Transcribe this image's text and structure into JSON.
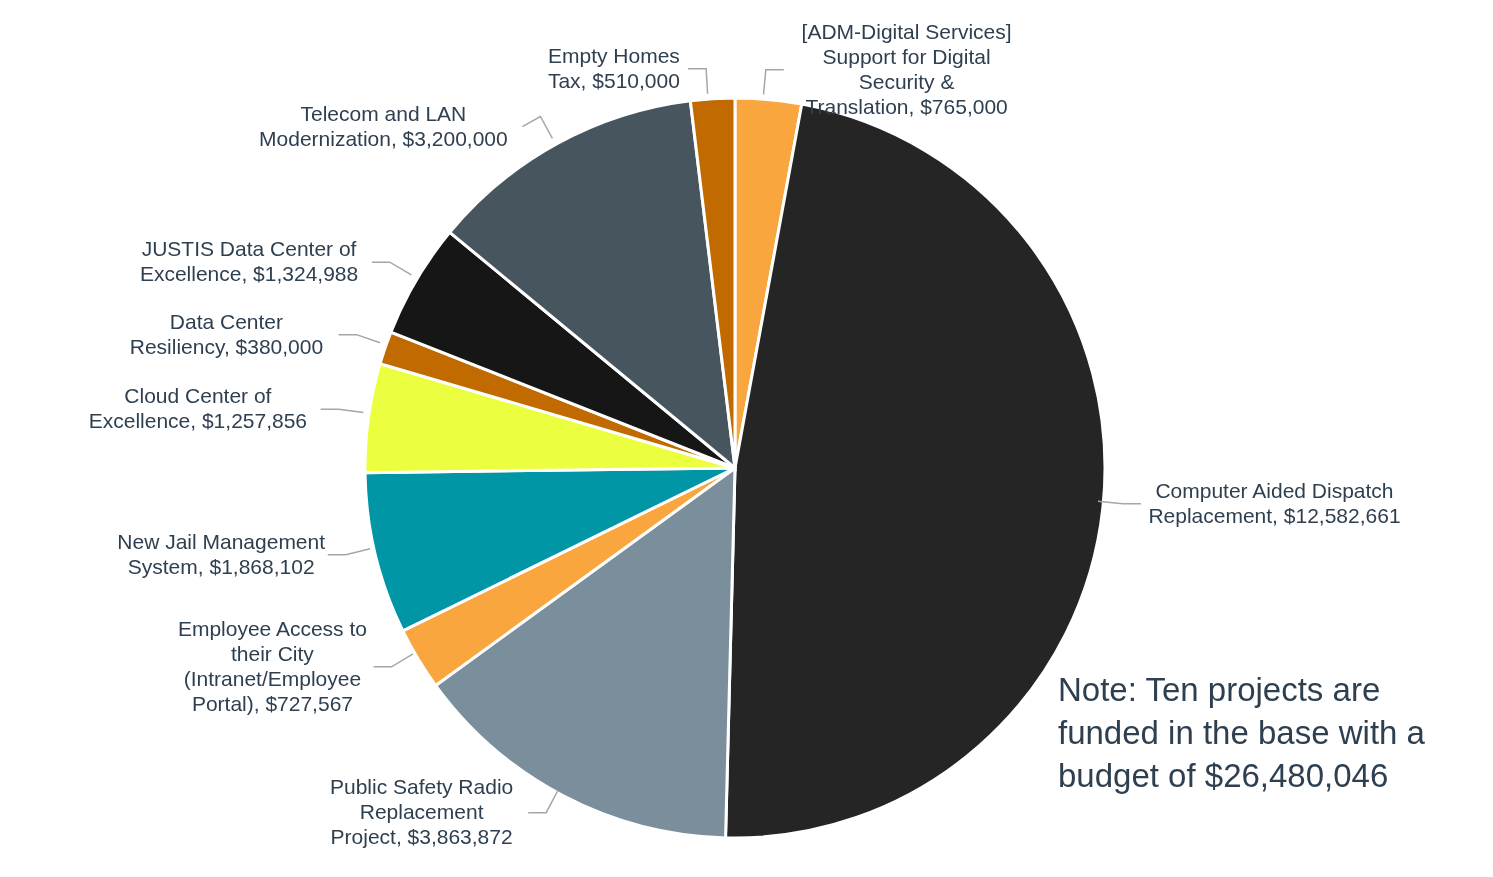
{
  "chart_data": {
    "type": "pie",
    "categories": [
      "[ADM-Digital Services] Support for Digital Security & Translation",
      "Computer Aided Dispatch Replacement",
      "Public Safety Radio Replacement Project",
      "Employee Access to their City (Intranet/Employee Portal)",
      "New Jail Management System",
      "Cloud Center of Excellence",
      "Data Center Resiliency",
      "JUSTIS Data Center of Excellence",
      "Telecom and LAN Modernization",
      "Empty Homes Tax"
    ],
    "values": [
      765000,
      12582661,
      3863872,
      727567,
      1868102,
      1257856,
      380000,
      1324988,
      3200000,
      510000
    ],
    "value_labels": [
      "$765,000",
      "$12,582,661",
      "$3,863,872",
      "$727,567",
      "$1,868,102",
      "$1,257,856",
      "$380,000",
      "$1,324,988",
      "$3,200,000",
      "$510,000"
    ],
    "colors": [
      "#f9a63f",
      "#252525",
      "#7a8f9b",
      "#f9a63f",
      "#0096a6",
      "#ebff40",
      "#c06a00",
      "#161616",
      "#47555f",
      "#c06a00"
    ],
    "annotations": [
      "Note: Ten projects are funded in the base with a budget of $26,480,046"
    ]
  }
}
